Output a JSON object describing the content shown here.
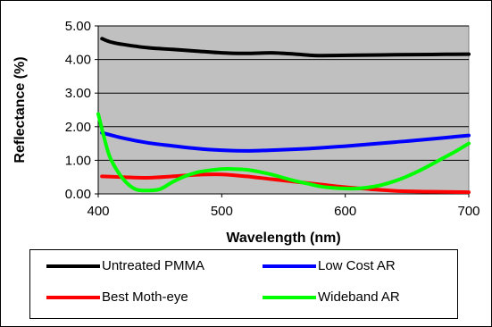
{
  "chart_data": {
    "type": "line",
    "title": "",
    "xlabel": "Wavelength (nm)",
    "ylabel": "Reflectance (%)",
    "xlim": [
      400,
      700
    ],
    "ylim": [
      0,
      5
    ],
    "xticks": [
      "400",
      "500",
      "600",
      "700"
    ],
    "yticks": [
      "0.00",
      "1.00",
      "2.00",
      "3.00",
      "4.00",
      "5.00"
    ],
    "plot_background": "#c0c0c0",
    "grid": "horizontal",
    "legend_position": "bottom",
    "series": [
      {
        "name": "Untreated PMMA",
        "color": "#000000",
        "x": [
          403,
          410,
          420,
          440,
          460,
          480,
          500,
          520,
          540,
          560,
          575,
          590,
          610,
          640,
          670,
          700
        ],
        "y": [
          4.62,
          4.52,
          4.45,
          4.35,
          4.3,
          4.25,
          4.2,
          4.18,
          4.2,
          4.16,
          4.12,
          4.12,
          4.13,
          4.14,
          4.15,
          4.16
        ]
      },
      {
        "name": "Low Cost AR",
        "color": "#0000ff",
        "x": [
          403,
          420,
          440,
          460,
          480,
          500,
          520,
          540,
          560,
          580,
          600,
          620,
          640,
          660,
          680,
          700
        ],
        "y": [
          1.82,
          1.66,
          1.52,
          1.43,
          1.35,
          1.3,
          1.28,
          1.3,
          1.33,
          1.37,
          1.42,
          1.48,
          1.54,
          1.6,
          1.67,
          1.74
        ]
      },
      {
        "name": "Best Moth-eye",
        "color": "#ff0000",
        "x": [
          403,
          420,
          440,
          460,
          480,
          500,
          520,
          540,
          560,
          580,
          600,
          620,
          640,
          660,
          680,
          700
        ],
        "y": [
          0.52,
          0.5,
          0.48,
          0.52,
          0.57,
          0.58,
          0.52,
          0.44,
          0.36,
          0.28,
          0.2,
          0.14,
          0.09,
          0.07,
          0.06,
          0.05
        ]
      },
      {
        "name": "Wideband AR",
        "color": "#00ff00",
        "x": [
          400,
          405,
          410,
          420,
          430,
          440,
          450,
          460,
          470,
          480,
          490,
          500,
          510,
          520,
          530,
          540,
          550,
          560,
          570,
          580,
          590,
          600,
          610,
          620,
          630,
          640,
          650,
          660,
          670,
          680,
          690,
          700
        ],
        "y": [
          2.38,
          1.65,
          1.05,
          0.45,
          0.14,
          0.1,
          0.14,
          0.35,
          0.52,
          0.64,
          0.7,
          0.74,
          0.74,
          0.72,
          0.66,
          0.58,
          0.48,
          0.38,
          0.3,
          0.22,
          0.18,
          0.16,
          0.16,
          0.2,
          0.27,
          0.38,
          0.52,
          0.69,
          0.88,
          1.08,
          1.28,
          1.5
        ]
      }
    ]
  },
  "legend": {
    "items": [
      {
        "label": "Untreated PMMA",
        "color": "#000000"
      },
      {
        "label": "Low Cost AR",
        "color": "#0000ff"
      },
      {
        "label": "Best Moth-eye",
        "color": "#ff0000"
      },
      {
        "label": "Wideband AR",
        "color": "#00ff00"
      }
    ]
  }
}
